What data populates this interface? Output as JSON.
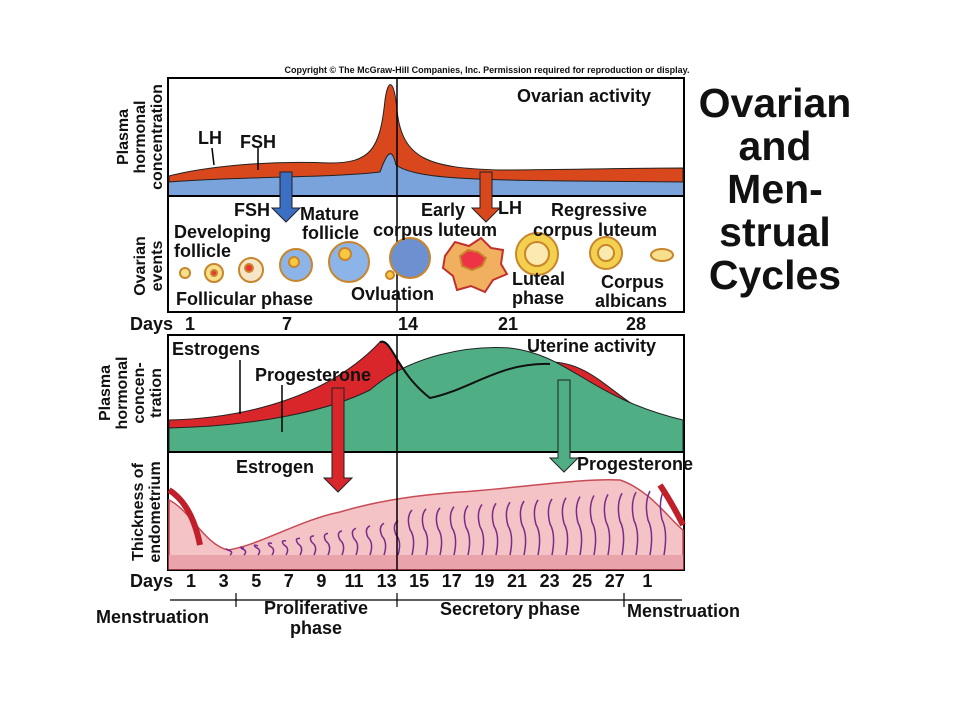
{
  "copyright": "Copyright © The McGraw-Hill Companies, Inc. Permission required for reproduction or display.",
  "title": [
    "Ovarian",
    "and",
    "Men-",
    "strual",
    "Cycles"
  ],
  "ovarian_panel": {
    "y_label": [
      "Plasma",
      "hormonal",
      "concentration"
    ],
    "heading": "Ovarian activity",
    "lh": "LH",
    "fsh": "FSH"
  },
  "events_panel": {
    "y_label": [
      "Ovarian",
      "events"
    ],
    "fsh_arrow": "FSH",
    "lh_arrow": "LH",
    "developing_follicle": [
      "Developing",
      "follicle"
    ],
    "mature_follicle": [
      "Mature",
      "follicle"
    ],
    "early_corpus_luteum": [
      "Early",
      "corpus luteum"
    ],
    "regressive_corpus_luteum": [
      "Regressive",
      "corpus luteum"
    ],
    "luteal_phase": [
      "Luteal",
      "phase"
    ],
    "corpus_albicans": [
      "Corpus",
      "albicans"
    ],
    "follicular_phase": "Follicular phase",
    "ovulation": "Ovluation"
  },
  "days_top": {
    "label": "Days",
    "days": [
      "1",
      "7",
      "14",
      "21",
      "28"
    ]
  },
  "uterine_panel": {
    "y_label": [
      "Plasma",
      "hormonal",
      "concen-",
      "tration"
    ],
    "heading": "Uterine activity",
    "estrogens": "Estrogens",
    "progesterone": "Progesterone"
  },
  "endometrium_panel": {
    "y_label": [
      "Thickness of",
      "endometrium"
    ],
    "estrogen_arrow": "Estrogen",
    "progesterone_arrow": "Progesterone"
  },
  "days_bottom": {
    "label": "Days",
    "days": [
      "1",
      "3",
      "5",
      "7",
      "9",
      "11",
      "13",
      "15",
      "17",
      "19",
      "21",
      "23",
      "25",
      "27",
      "1"
    ]
  },
  "phases": {
    "menstruation_start": "Menstruation",
    "proliferative": [
      "Proliferative",
      "phase"
    ],
    "secretory": "Secretory phase",
    "menstruation_end": "Menstruation"
  }
}
